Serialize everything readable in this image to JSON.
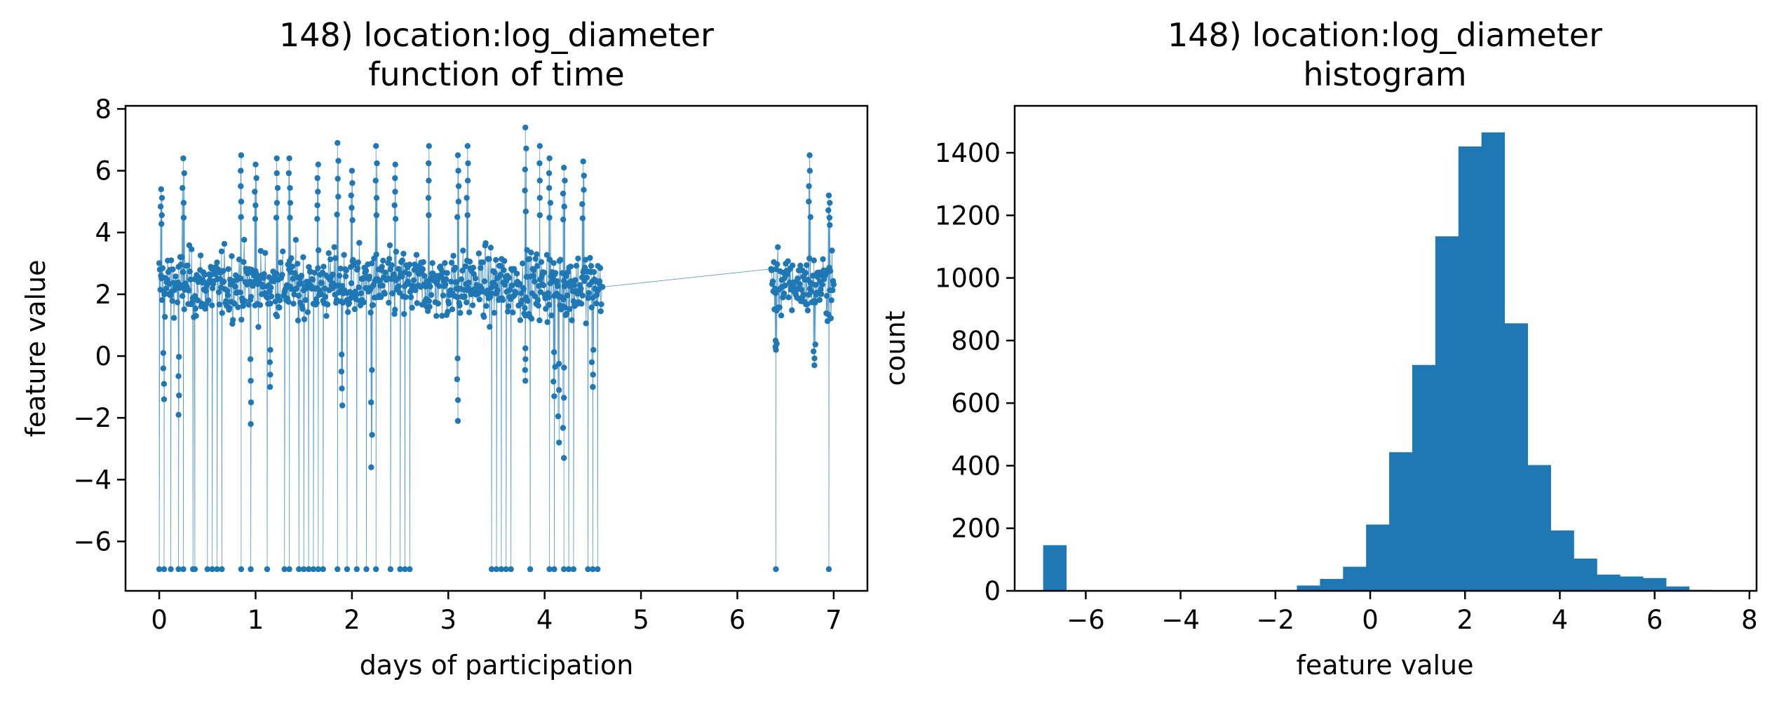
{
  "colors": {
    "series": "#1f77b4",
    "axes": "#000000",
    "background": "#ffffff"
  },
  "chart_data": [
    {
      "type": "line",
      "title": "148) location:log_diameter",
      "subtitle": "function of time",
      "xlabel": "days of participation",
      "ylabel": "feature value",
      "xlim": [
        -0.35,
        7.35
      ],
      "ylim": [
        -7.6,
        8.1
      ],
      "xticks": [
        "0",
        "1",
        "2",
        "3",
        "4",
        "5",
        "6",
        "7"
      ],
      "yticks": [
        "−6",
        "−4",
        "−2",
        "0",
        "2",
        "4",
        "6",
        "8"
      ],
      "grid": false,
      "markers": true,
      "floor_value": -6.9,
      "segments": [
        {
          "x": [
            0.0,
            4.6
          ],
          "mean": 2.3,
          "spread": 1.0
        },
        {
          "x": [
            6.35,
            7.0
          ],
          "mean": 2.3,
          "spread": 0.9
        }
      ],
      "floor_x": [
        0.0,
        0.05,
        0.12,
        0.2,
        0.25,
        0.35,
        0.37,
        0.5,
        0.55,
        0.6,
        0.65,
        0.85,
        0.95,
        1.12,
        1.3,
        1.35,
        1.45,
        1.5,
        1.55,
        1.6,
        1.65,
        1.7,
        1.85,
        1.95,
        2.05,
        2.15,
        2.25,
        2.4,
        2.5,
        2.55,
        2.6,
        3.45,
        3.5,
        3.55,
        3.6,
        3.65,
        3.85,
        4.05,
        4.1,
        4.2,
        4.25,
        4.3,
        4.45,
        4.5,
        4.55,
        6.4,
        6.95
      ],
      "peaks": [
        {
          "x": 0.02,
          "y": 5.4
        },
        {
          "x": 0.25,
          "y": 6.4
        },
        {
          "x": 0.85,
          "y": 6.5
        },
        {
          "x": 1.0,
          "y": 6.2
        },
        {
          "x": 1.22,
          "y": 6.4
        },
        {
          "x": 1.35,
          "y": 6.4
        },
        {
          "x": 1.65,
          "y": 6.2
        },
        {
          "x": 1.85,
          "y": 6.9
        },
        {
          "x": 2.0,
          "y": 6.0
        },
        {
          "x": 2.25,
          "y": 6.8
        },
        {
          "x": 2.45,
          "y": 6.2
        },
        {
          "x": 2.8,
          "y": 6.8
        },
        {
          "x": 3.1,
          "y": 6.5
        },
        {
          "x": 3.2,
          "y": 6.8
        },
        {
          "x": 3.8,
          "y": 7.4
        },
        {
          "x": 3.95,
          "y": 6.8
        },
        {
          "x": 4.05,
          "y": 6.4
        },
        {
          "x": 4.2,
          "y": 6.1
        },
        {
          "x": 4.4,
          "y": 6.3
        },
        {
          "x": 6.75,
          "y": 6.5
        },
        {
          "x": 6.95,
          "y": 5.2
        }
      ],
      "troughs": [
        {
          "x": 0.05,
          "y": -1.4
        },
        {
          "x": 0.2,
          "y": -1.9
        },
        {
          "x": 0.95,
          "y": -2.2
        },
        {
          "x": 1.15,
          "y": -1.0
        },
        {
          "x": 1.9,
          "y": -1.6
        },
        {
          "x": 2.2,
          "y": -3.6
        },
        {
          "x": 3.1,
          "y": -2.1
        },
        {
          "x": 3.8,
          "y": -0.8
        },
        {
          "x": 4.1,
          "y": -1.3
        },
        {
          "x": 4.15,
          "y": -2.8
        },
        {
          "x": 4.2,
          "y": -3.3
        },
        {
          "x": 4.5,
          "y": -1.0
        },
        {
          "x": 6.4,
          "y": 0.2
        },
        {
          "x": 6.8,
          "y": -0.3
        }
      ]
    },
    {
      "type": "bar",
      "title": "148) location:log_diameter",
      "subtitle": "histogram",
      "xlabel": "feature value",
      "ylabel": "count",
      "xlim": [
        -7.5,
        8.15
      ],
      "ylim": [
        0,
        1550
      ],
      "xticks": [
        "−6",
        "−4",
        "−2",
        "0",
        "2",
        "4",
        "6",
        "8"
      ],
      "yticks": [
        "0",
        "200",
        "400",
        "600",
        "800",
        "1000",
        "1200",
        "1400"
      ],
      "grid": false,
      "bins_start": -6.9,
      "bin_width": 0.4867,
      "values": [
        146,
        0,
        0,
        0,
        0,
        0,
        0,
        0,
        0,
        2,
        3,
        17,
        38,
        77,
        212,
        443,
        722,
        1133,
        1420,
        1465,
        855,
        402,
        193,
        103,
        52,
        46,
        41,
        14,
        3
      ]
    }
  ]
}
